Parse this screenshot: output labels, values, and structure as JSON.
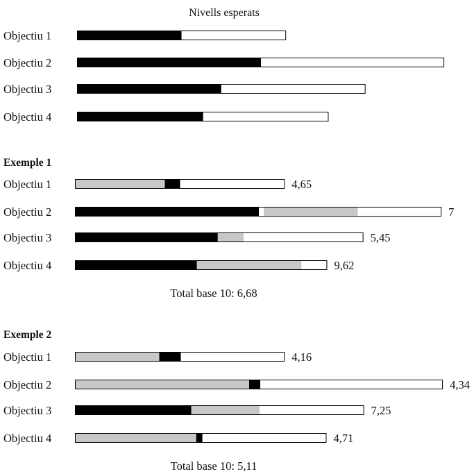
{
  "chart_data": {
    "type": "bar",
    "colors": {
      "filled": "#000000",
      "partial": "#c8c8c8",
      "empty": "#ffffff"
    },
    "panels": [
      {
        "heading": "Nivells esperats",
        "rows": [
          {
            "label": "Objectiu 1",
            "segments": [
              {
                "kind": "filled",
                "value": 1.5
              },
              {
                "kind": "empty",
                "value": 1.5
              }
            ]
          },
          {
            "label": "Objectiu 2",
            "segments": [
              {
                "kind": "filled",
                "value": 2.64
              },
              {
                "kind": "empty",
                "value": 2.63
              }
            ]
          },
          {
            "label": "Objectiu 3",
            "segments": [
              {
                "kind": "filled",
                "value": 2.07
              },
              {
                "kind": "empty",
                "value": 2.07
              }
            ]
          },
          {
            "label": "Objectiu 4",
            "segments": [
              {
                "kind": "filled",
                "value": 1.81
              },
              {
                "kind": "empty",
                "value": 1.8
              }
            ]
          }
        ]
      },
      {
        "heading": "Exemple 1",
        "total": "Total base 10: 6,68",
        "rows": [
          {
            "label": "Objectiu 1",
            "value_label": "4,65",
            "segments": [
              {
                "kind": "partial",
                "value": 1.29
              },
              {
                "kind": "filled",
                "value": 0.22
              },
              {
                "kind": "empty",
                "value": 1.5
              }
            ]
          },
          {
            "label": "Objectiu 2",
            "value_label": "7",
            "segments": [
              {
                "kind": "filled",
                "value": 2.64
              },
              {
                "kind": "empty",
                "value": 0.07
              },
              {
                "kind": "partial",
                "value": 1.35
              },
              {
                "kind": "empty",
                "value": 1.2
              }
            ]
          },
          {
            "label": "Objectiu 3",
            "value_label": "5,45",
            "segments": [
              {
                "kind": "filled",
                "value": 2.05
              },
              {
                "kind": "partial",
                "value": 0.37
              },
              {
                "kind": "empty",
                "value": 1.72
              }
            ]
          },
          {
            "label": "Objectiu 4",
            "value_label": "9,62",
            "segments": [
              {
                "kind": "filled",
                "value": 1.75
              },
              {
                "kind": "partial",
                "value": 1.5
              },
              {
                "kind": "empty",
                "value": 0.37
              }
            ]
          }
        ]
      },
      {
        "heading": "Exemple 2",
        "total": "Total base 10: 5,11",
        "rows": [
          {
            "label": "Objectiu 1",
            "value_label": "4,16",
            "segments": [
              {
                "kind": "partial",
                "value": 1.21
              },
              {
                "kind": "filled",
                "value": 0.31
              },
              {
                "kind": "empty",
                "value": 1.49
              }
            ]
          },
          {
            "label": "Objectiu 2",
            "value_label": "4,34",
            "segments": [
              {
                "kind": "partial",
                "value": 2.5
              },
              {
                "kind": "filled",
                "value": 0.16
              },
              {
                "kind": "empty",
                "value": 2.62
              }
            ]
          },
          {
            "label": "Objectiu 3",
            "value_label": "7,25",
            "segments": [
              {
                "kind": "filled",
                "value": 1.67
              },
              {
                "kind": "partial",
                "value": 0.98
              },
              {
                "kind": "empty",
                "value": 1.5
              }
            ]
          },
          {
            "label": "Objectiu 4",
            "value_label": "4,71",
            "segments": [
              {
                "kind": "partial",
                "value": 1.74
              },
              {
                "kind": "filled",
                "value": 0.09
              },
              {
                "kind": "empty",
                "value": 1.78
              }
            ]
          }
        ]
      }
    ]
  }
}
